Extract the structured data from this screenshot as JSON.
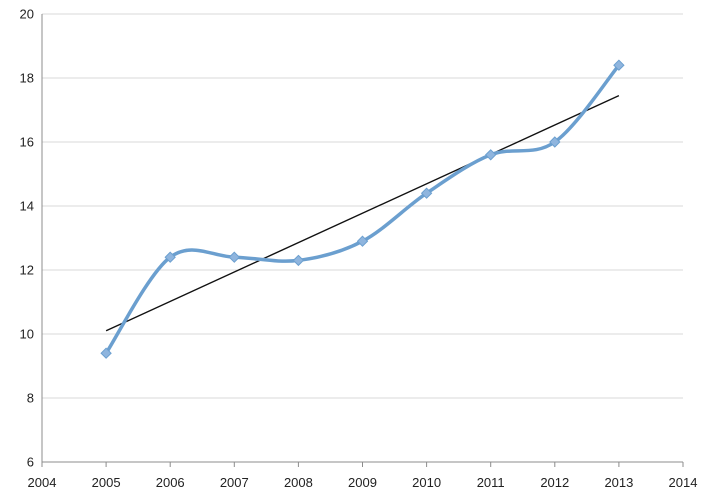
{
  "chart_data": {
    "type": "line",
    "title": "",
    "xlabel": "",
    "ylabel": "",
    "xlim": [
      2004,
      2014
    ],
    "ylim": [
      6,
      20
    ],
    "x_ticks": [
      2004,
      2005,
      2006,
      2007,
      2008,
      2009,
      2010,
      2011,
      2012,
      2013,
      2014
    ],
    "y_ticks": [
      6,
      8,
      10,
      12,
      14,
      16,
      18,
      20
    ],
    "grid": "horizontal",
    "legend": "none",
    "series": [
      {
        "x": [
          2005,
          2006,
          2007,
          2008,
          2009,
          2010,
          2011,
          2012,
          2013
        ],
        "values": [
          9.4,
          12.4,
          12.4,
          12.3,
          12.9,
          14.4,
          15.6,
          16.0,
          18.4
        ],
        "style": "smoothed line with diamond markers",
        "color": "#6b9fcf",
        "marker_color": "#8fb5de"
      }
    ],
    "trendline": {
      "type": "linear",
      "x": [
        2005,
        2013
      ],
      "values": [
        10.1,
        17.45
      ],
      "color": "#111111"
    },
    "colors": {
      "grid": "#d9d9d9",
      "axis": "#8c8c8c",
      "text": "#222222"
    }
  }
}
